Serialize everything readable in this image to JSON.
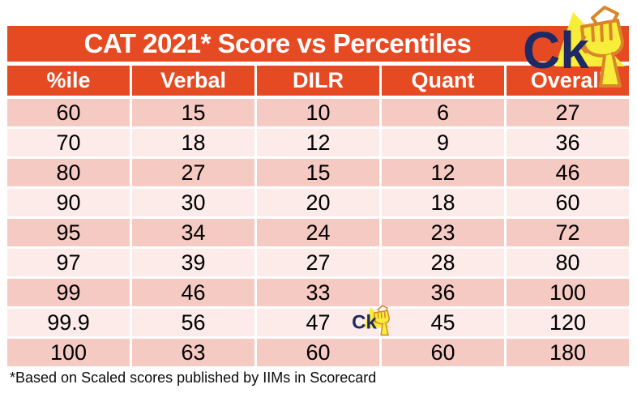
{
  "title": "CAT 2021* Score vs Percentiles",
  "logo": {
    "text": "Ck"
  },
  "footnote": "*Based on Scaled scores published by IIMs in Scorecard",
  "colors": {
    "accent_orange": "#e64a23",
    "row_dark_pink": "#f5cac3",
    "row_light_pink": "#fcebe8",
    "logo_navy": "#1f2a63",
    "logo_yellow": "#f9ed3b",
    "logo_fist_orange": "#d9862a",
    "text_black": "#000000"
  },
  "chart_data": {
    "type": "table",
    "title": "CAT 2021* Score vs Percentiles",
    "columns": [
      "%ile",
      "Verbal",
      "DILR",
      "Quant",
      "Overall"
    ],
    "rows": [
      [
        60,
        15,
        10,
        6,
        27
      ],
      [
        70,
        18,
        12,
        9,
        36
      ],
      [
        80,
        27,
        15,
        12,
        46
      ],
      [
        90,
        30,
        20,
        18,
        60
      ],
      [
        95,
        34,
        24,
        23,
        72
      ],
      [
        97,
        39,
        27,
        28,
        80
      ],
      [
        99,
        46,
        33,
        36,
        100
      ],
      [
        99.9,
        56,
        47,
        45,
        120
      ],
      [
        100,
        63,
        60,
        60,
        180
      ]
    ],
    "footnote": "*Based on Scaled scores published by IIMs in Scorecard",
    "layout": {
      "header_position": "top",
      "row_striping": "dark-light-alternating",
      "grid": "white-gaps"
    }
  }
}
